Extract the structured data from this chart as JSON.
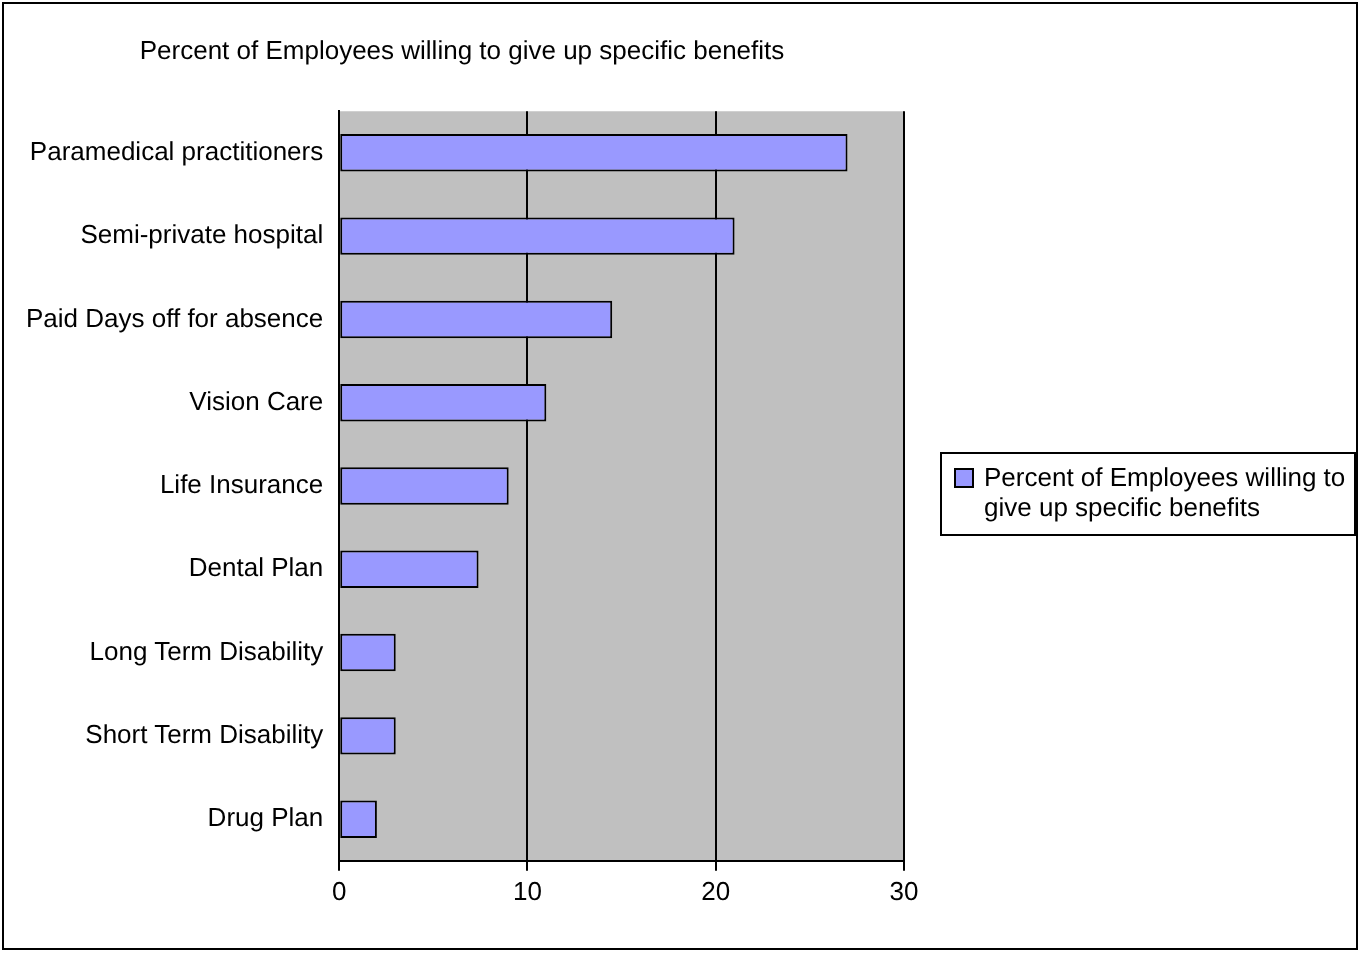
{
  "chart_data": {
    "type": "bar",
    "orientation": "horizontal",
    "title": "Percent of Employees willing to give up specific benefits",
    "categories": [
      "Paramedical practitioners",
      "Semi-private hospital",
      "Paid Days off for absence",
      "Vision Care",
      "Life Insurance",
      "Dental Plan",
      "Long Term Disability",
      "Short Term Disability",
      "Drug Plan"
    ],
    "series": [
      {
        "name": "Percent of Employees willing to give up specific benefits",
        "color": "#9999ff",
        "values": [
          27,
          21,
          14.5,
          11,
          9,
          7.4,
          3,
          3,
          2
        ]
      }
    ],
    "xlim": [
      0,
      30
    ],
    "xticks": [
      0,
      10,
      20,
      30
    ],
    "grid": "x",
    "legend": "right"
  }
}
